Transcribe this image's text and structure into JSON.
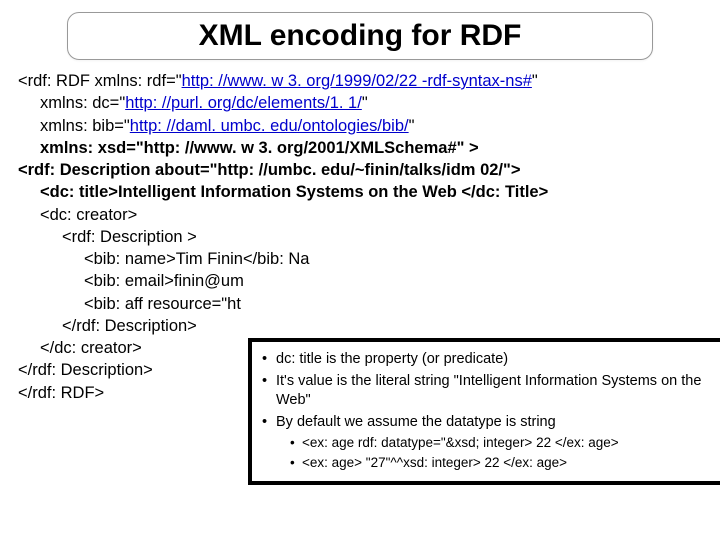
{
  "title": "XML encoding for RDF",
  "code": {
    "l01a": "<rdf: RDF xmlns: rdf=\"",
    "l01b": "http: //www. w 3. org/1999/02/22 -rdf-syntax-ns#",
    "l01c": "\"",
    "l02a": "xmlns: dc=\"",
    "l02b": "http: //purl. org/dc/elements/1. 1/",
    "l02c": "\"",
    "l03a": "xmlns: bib=\"",
    "l03b": "http: //daml. umbc. edu/ontologies/bib/",
    "l03c": "\"",
    "l04": "xmlns: xsd=\"http: //www. w 3. org/2001/XMLSchema#\" >",
    "l05": "<rdf: Description about=\"http: //umbc. edu/~finin/talks/idm 02/\">",
    "l06": "<dc: title>Intelligent Information Systems on the Web </dc: Title>",
    "l07": "<dc: creator>",
    "l08": "<rdf: Description >",
    "l09": "<bib: name>Tim Finin</bib: Na",
    "l10": "<bib: email>finin@um",
    "l11": "<bib: aff resource=\"ht",
    "l12": "</rdf: Description>",
    "l13": "</dc: creator>",
    "l14": "</rdf: Description>",
    "l15": "</rdf: RDF>"
  },
  "callout": {
    "b1": "dc: title is the property (or predicate)",
    "b2": "It's value is the literal string \"Intelligent Information Systems on the Web\"",
    "b3": "By default we assume the datatype is string",
    "s1": "<ex: age rdf: datatype=\"&xsd; integer> 22 </ex: age>",
    "s2": "<ex: age> \"27\"^^xsd: integer> 22 </ex: age>"
  }
}
